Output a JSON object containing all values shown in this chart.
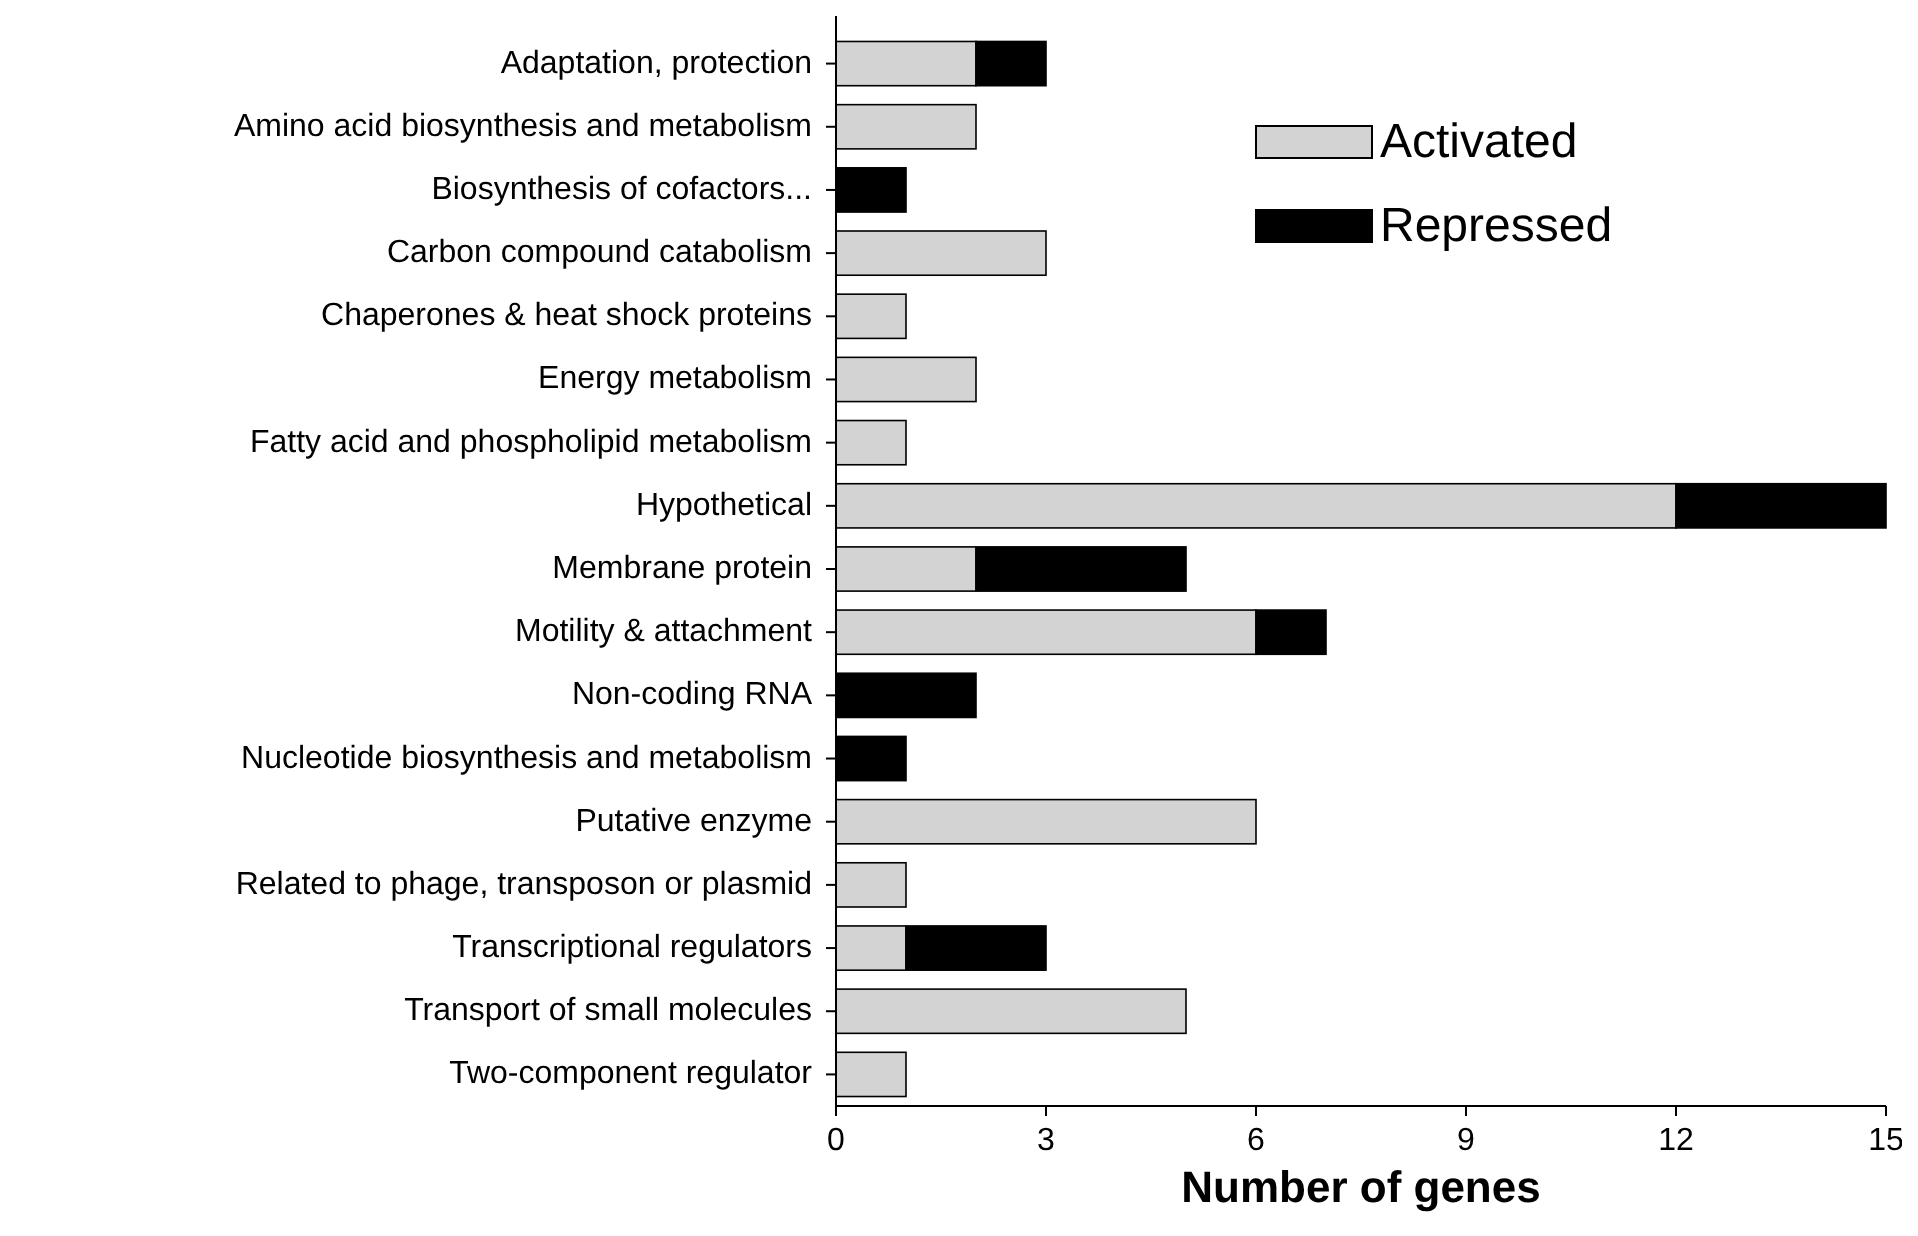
{
  "chart_data": {
    "type": "bar",
    "orientation": "horizontal",
    "stacked": true,
    "xlabel": "Number of genes",
    "categories": [
      "Adaptation, protection",
      "Amino acid biosynthesis and metabolism",
      "Biosynthesis of cofactors...",
      "Carbon compound catabolism",
      "Chaperones & heat shock proteins",
      "Energy metabolism",
      "Fatty acid and phospholipid metabolism",
      "Hypothetical",
      "Membrane protein",
      "Motility & attachment",
      "Non-coding RNA",
      "Nucleotide biosynthesis and metabolism",
      "Putative enzyme",
      "Related to phage, transposon or plasmid",
      "Transcriptional regulators",
      "Transport of small molecules",
      "Two-component regulator"
    ],
    "series": [
      {
        "name": "Activated",
        "color": "#d3d3d3",
        "values": [
          2,
          2,
          0,
          3,
          1,
          2,
          1,
          12,
          2,
          6,
          0,
          0,
          6,
          1,
          1,
          5,
          1
        ]
      },
      {
        "name": "Repressed",
        "color": "#000000",
        "values": [
          1,
          0,
          1,
          0,
          0,
          0,
          0,
          3,
          3,
          1,
          2,
          1,
          0,
          0,
          2,
          0,
          0
        ]
      }
    ],
    "xlim": [
      0,
      15
    ],
    "xticks": [
      0,
      3,
      6,
      9,
      12,
      15
    ],
    "grid": false,
    "legend": "top right"
  }
}
